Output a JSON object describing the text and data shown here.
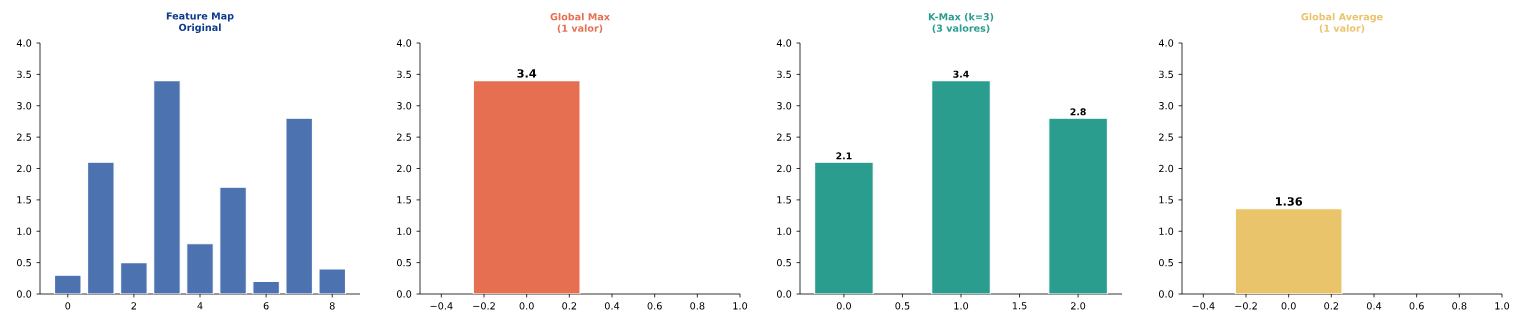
{
  "chart_data": [
    {
      "type": "bar",
      "title": "Feature Map",
      "subtitle": "Original",
      "x": [
        0,
        1,
        2,
        3,
        4,
        5,
        6,
        7,
        8
      ],
      "values": [
        0.3,
        2.1,
        0.5,
        3.4,
        0.8,
        1.7,
        0.2,
        2.8,
        0.4
      ],
      "color": "#4c72b0",
      "xlim": [
        -0.84,
        8.84
      ],
      "xticks": [
        0,
        2,
        4,
        6,
        8
      ],
      "ylim": [
        0,
        4
      ],
      "yticks": [
        {
          "value": 0,
          "label": "0.0"
        },
        {
          "value": 0.5,
          "label": "0.5"
        },
        {
          "value": 1,
          "label": "1.0"
        },
        {
          "value": 1.5,
          "label": "1.5"
        },
        {
          "value": 2,
          "label": "2.0"
        },
        {
          "value": 2.5,
          "label": "2.5"
        },
        {
          "value": 3,
          "label": "3.0"
        },
        {
          "value": 3.5,
          "label": "3.5"
        },
        {
          "value": 4,
          "label": "4.0"
        }
      ]
    },
    {
      "type": "bar",
      "title": "Global Max",
      "subtitle": "(1 valor)",
      "x": [
        0
      ],
      "values": [
        3.4
      ],
      "color": "#e76f51",
      "data_labels": true,
      "xlim": [
        -0.5,
        1.0
      ],
      "xticks": [
        {
          "value": -0.4,
          "label": "−0.4"
        },
        {
          "value": -0.2,
          "label": "−0.2"
        },
        {
          "value": 0,
          "label": "0.0"
        },
        {
          "value": 0.2,
          "label": "0.2"
        },
        {
          "value": 0.4,
          "label": "0.4"
        },
        {
          "value": 0.6,
          "label": "0.6"
        },
        {
          "value": 0.8,
          "label": "0.8"
        },
        {
          "value": 1.0,
          "label": "1.0"
        }
      ],
      "ylim": [
        0,
        4
      ],
      "yticks": [
        {
          "value": 0,
          "label": "0.0"
        },
        {
          "value": 0.5,
          "label": "0.5"
        },
        {
          "value": 1,
          "label": "1.0"
        },
        {
          "value": 1.5,
          "label": "1.5"
        },
        {
          "value": 2,
          "label": "2.0"
        },
        {
          "value": 2.5,
          "label": "2.5"
        },
        {
          "value": 3,
          "label": "3.0"
        },
        {
          "value": 3.5,
          "label": "3.5"
        },
        {
          "value": 4,
          "label": "4.0"
        }
      ]
    },
    {
      "type": "bar",
      "title": "K-Max (k=3)",
      "subtitle": "(3 valores)",
      "x": [
        0,
        1,
        2
      ],
      "values": [
        2.1,
        3.4,
        2.8
      ],
      "color": "#2a9d8f",
      "data_labels": true,
      "xlim": [
        -0.375,
        2.375
      ],
      "xticks": [
        {
          "value": 0,
          "label": "0.0"
        },
        {
          "value": 0.5,
          "label": "0.5"
        },
        {
          "value": 1,
          "label": "1.0"
        },
        {
          "value": 1.5,
          "label": "1.5"
        },
        {
          "value": 2,
          "label": "2.0"
        }
      ],
      "ylim": [
        0,
        4
      ],
      "yticks": [
        {
          "value": 0,
          "label": "0.0"
        },
        {
          "value": 0.5,
          "label": "0.5"
        },
        {
          "value": 1,
          "label": "1.0"
        },
        {
          "value": 1.5,
          "label": "1.5"
        },
        {
          "value": 2,
          "label": "2.0"
        },
        {
          "value": 2.5,
          "label": "2.5"
        },
        {
          "value": 3,
          "label": "3.0"
        },
        {
          "value": 3.5,
          "label": "3.5"
        },
        {
          "value": 4,
          "label": "4.0"
        }
      ]
    },
    {
      "type": "bar",
      "title": "Global Average",
      "subtitle": "(1 valor)",
      "x": [
        0
      ],
      "values": [
        1.36
      ],
      "color": "#e9c46a",
      "data_labels": true,
      "xlim": [
        -0.5,
        1.0
      ],
      "xticks": [
        {
          "value": -0.4,
          "label": "−0.4"
        },
        {
          "value": -0.2,
          "label": "−0.2"
        },
        {
          "value": 0,
          "label": "0.0"
        },
        {
          "value": 0.2,
          "label": "0.2"
        },
        {
          "value": 0.4,
          "label": "0.4"
        },
        {
          "value": 0.6,
          "label": "0.6"
        },
        {
          "value": 0.8,
          "label": "0.8"
        },
        {
          "value": 1.0,
          "label": "1.0"
        }
      ],
      "ylim": [
        0,
        4
      ],
      "yticks": [
        {
          "value": 0,
          "label": "0.0"
        },
        {
          "value": 0.5,
          "label": "0.5"
        },
        {
          "value": 1,
          "label": "1.0"
        },
        {
          "value": 1.5,
          "label": "1.5"
        },
        {
          "value": 2,
          "label": "2.0"
        },
        {
          "value": 2.5,
          "label": "2.5"
        },
        {
          "value": 3,
          "label": "3.0"
        },
        {
          "value": 3.5,
          "label": "3.5"
        },
        {
          "value": 4,
          "label": "4.0"
        }
      ]
    }
  ]
}
